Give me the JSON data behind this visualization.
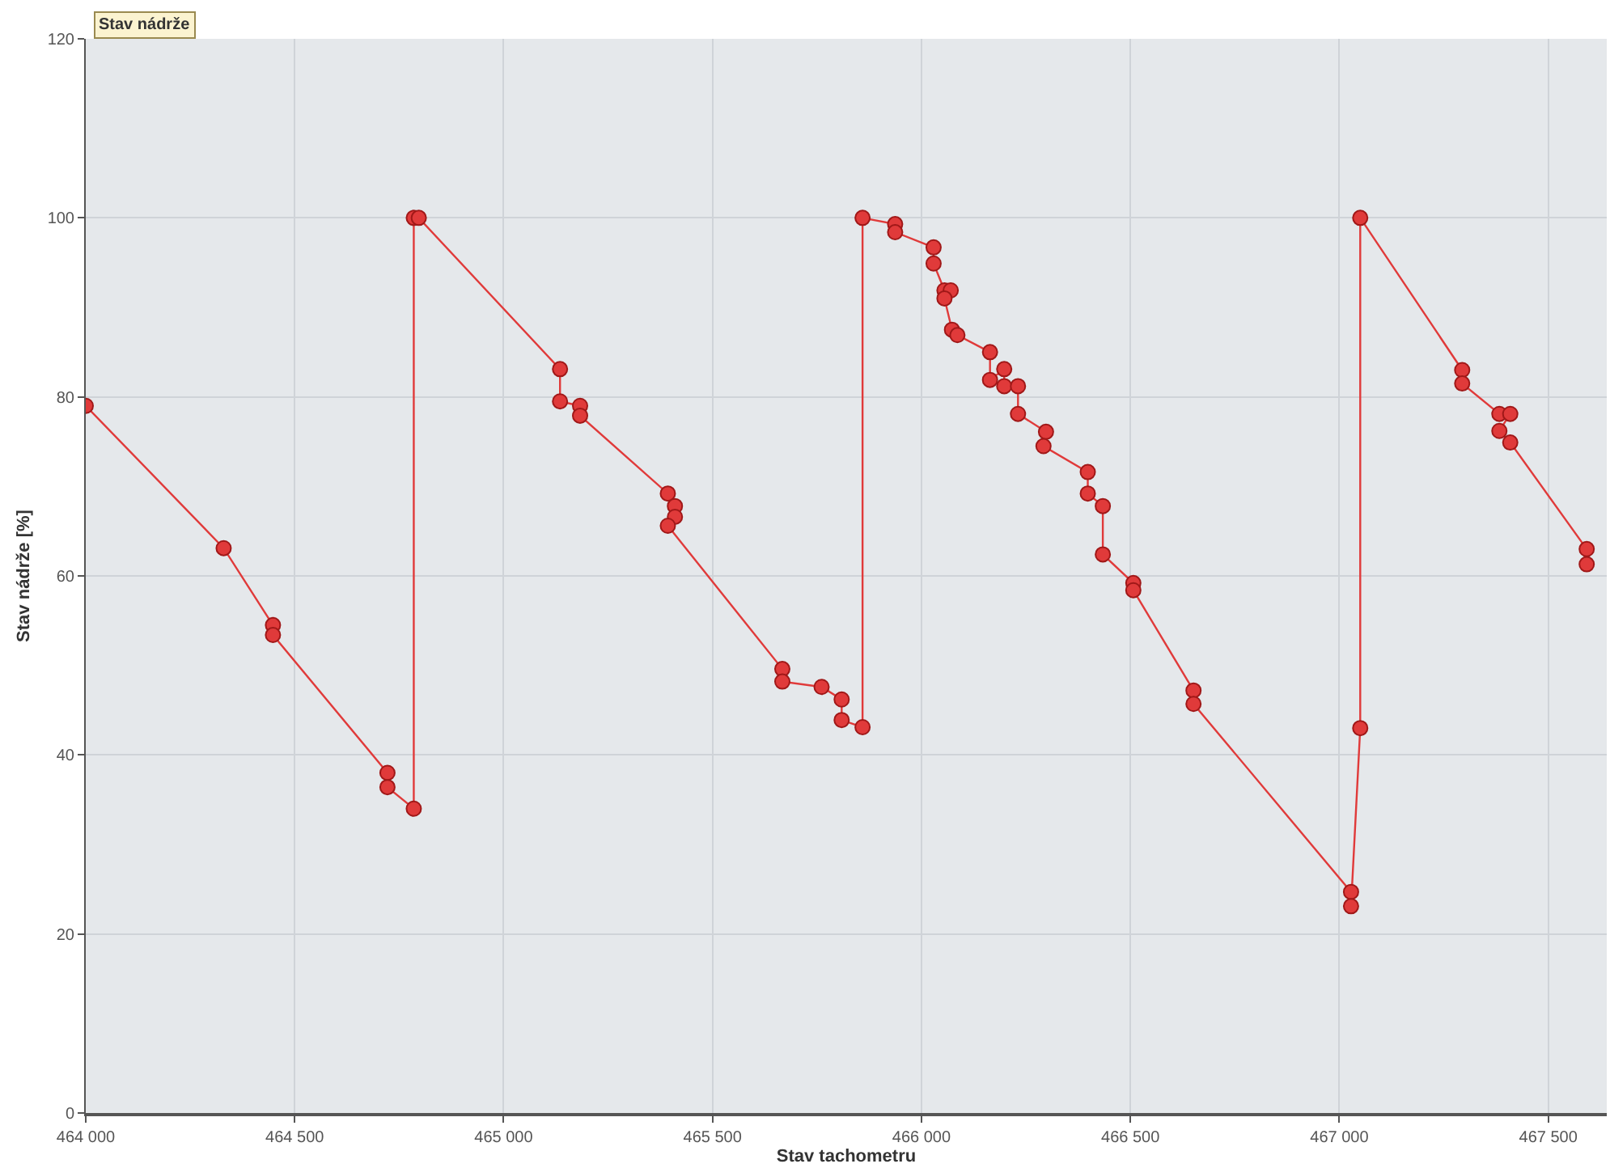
{
  "chart_data": {
    "type": "line",
    "title": "Stav nádrže",
    "xlabel": "Stav tachometru",
    "ylabel": "Stav nádrže [%]",
    "xlim": [
      464000,
      467640
    ],
    "ylim": [
      0,
      120
    ],
    "xticks": [
      {
        "value": 464000,
        "label": "464 000"
      },
      {
        "value": 464500,
        "label": "464 500"
      },
      {
        "value": 465000,
        "label": "465 000"
      },
      {
        "value": 465500,
        "label": "465 500"
      },
      {
        "value": 466000,
        "label": "466 000"
      },
      {
        "value": 466500,
        "label": "466 500"
      },
      {
        "value": 467000,
        "label": "467 000"
      },
      {
        "value": 467500,
        "label": "467 500"
      }
    ],
    "yticks": [
      0,
      20,
      40,
      60,
      80,
      100,
      120
    ],
    "grid": true,
    "marker": "circle",
    "line_style": "solid",
    "series": [
      {
        "color": "#e03a3a",
        "x": [
          464000,
          464330,
          464448,
          464448,
          464722,
          464722,
          464785,
          464785,
          464797,
          465135,
          465135,
          465183,
          465183,
          465393,
          465410,
          465410,
          465393,
          465667,
          465667,
          465761,
          465809,
          465809,
          465859,
          465859,
          465937,
          465937,
          466029,
          466029,
          466055,
          466070,
          466055,
          466073,
          466086,
          466164,
          466164,
          466198,
          466198,
          466231,
          466231,
          466298,
          466292,
          466398,
          466398,
          466434,
          466434,
          466507,
          466507,
          466651,
          466651,
          467028,
          467028,
          467050,
          467050,
          467294,
          467294,
          467383,
          467409,
          467383,
          467409,
          467592,
          467592
        ],
        "values": [
          79.0,
          63.1,
          54.5,
          53.4,
          38.0,
          36.4,
          34.0,
          100,
          100,
          83.1,
          79.5,
          79.0,
          77.9,
          69.2,
          67.8,
          66.6,
          65.6,
          49.6,
          48.2,
          47.6,
          46.2,
          43.9,
          43.1,
          100,
          99.3,
          98.4,
          96.7,
          94.9,
          91.9,
          91.9,
          91.0,
          87.5,
          86.9,
          85.0,
          81.9,
          83.1,
          81.2,
          81.2,
          78.1,
          76.1,
          74.5,
          71.6,
          69.2,
          67.8,
          62.4,
          59.2,
          58.4,
          47.2,
          45.7,
          24.7,
          23.1,
          43.0,
          100,
          83.0,
          81.5,
          78.1,
          78.1,
          76.2,
          74.9,
          63.0,
          61.3
        ]
      }
    ]
  }
}
